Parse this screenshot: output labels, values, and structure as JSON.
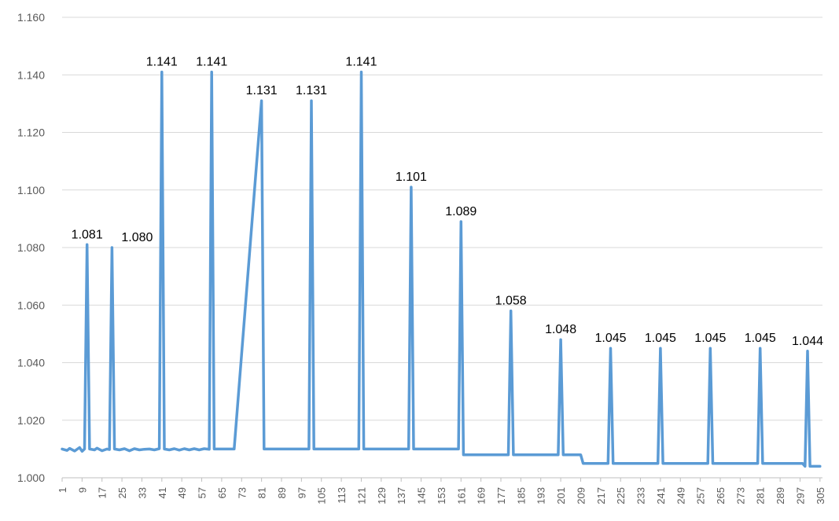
{
  "chart_data": {
    "type": "line",
    "title": "",
    "xlabel": "",
    "ylabel": "",
    "ylim": [
      1.0,
      1.16
    ],
    "xlim": [
      1,
      306
    ],
    "yticks": [
      "1.000",
      "1.020",
      "1.040",
      "1.060",
      "1.080",
      "1.100",
      "1.120",
      "1.140",
      "1.160"
    ],
    "xticks": [
      "1",
      "9",
      "17",
      "25",
      "33",
      "41",
      "49",
      "57",
      "65",
      "73",
      "81",
      "89",
      "97",
      "105",
      "113",
      "121",
      "129",
      "137",
      "145",
      "153",
      "161",
      "169",
      "177",
      "185",
      "193",
      "201",
      "209",
      "217",
      "225",
      "233",
      "241",
      "249",
      "257",
      "265",
      "273",
      "281",
      "289",
      "297",
      "305"
    ],
    "grid": true,
    "legend": "none",
    "color": "#5b9bd5",
    "series": [
      {
        "points": [
          [
            1,
            1.01
          ],
          [
            3,
            1.0095
          ],
          [
            4,
            1.0102
          ],
          [
            6,
            1.0093
          ],
          [
            8,
            1.0105
          ],
          [
            9,
            1.0092
          ],
          [
            10,
            1.01
          ],
          [
            11,
            1.081
          ],
          [
            12,
            1.01
          ],
          [
            14,
            1.0097
          ],
          [
            15,
            1.0103
          ],
          [
            17,
            1.0094
          ],
          [
            19,
            1.01
          ],
          [
            20,
            1.0098
          ],
          [
            21,
            1.08
          ],
          [
            22,
            1.01
          ],
          [
            24,
            1.0097
          ],
          [
            26,
            1.0101
          ],
          [
            28,
            1.0094
          ],
          [
            30,
            1.0101
          ],
          [
            32,
            1.0097
          ],
          [
            34,
            1.0099
          ],
          [
            36,
            1.01
          ],
          [
            38,
            1.0097
          ],
          [
            40,
            1.0101
          ],
          [
            41,
            1.141
          ],
          [
            42,
            1.01
          ],
          [
            44,
            1.0097
          ],
          [
            46,
            1.0101
          ],
          [
            48,
            1.0096
          ],
          [
            50,
            1.0101
          ],
          [
            52,
            1.0097
          ],
          [
            54,
            1.0101
          ],
          [
            56,
            1.0097
          ],
          [
            58,
            1.0101
          ],
          [
            60,
            1.0099
          ],
          [
            61,
            1.141
          ],
          [
            62,
            1.01
          ],
          [
            70,
            1.01
          ],
          [
            81,
            1.131
          ],
          [
            82,
            1.01
          ],
          [
            100,
            1.01
          ],
          [
            101,
            1.131
          ],
          [
            102,
            1.01
          ],
          [
            120,
            1.01
          ],
          [
            121,
            1.141
          ],
          [
            122,
            1.01
          ],
          [
            140,
            1.01
          ],
          [
            141,
            1.101
          ],
          [
            142,
            1.01
          ],
          [
            160,
            1.01
          ],
          [
            161,
            1.089
          ],
          [
            162,
            1.008
          ],
          [
            180,
            1.008
          ],
          [
            181,
            1.058
          ],
          [
            182,
            1.008
          ],
          [
            200,
            1.008
          ],
          [
            201,
            1.048
          ],
          [
            202,
            1.008
          ],
          [
            209,
            1.008
          ],
          [
            210,
            1.005
          ],
          [
            220,
            1.005
          ],
          [
            221,
            1.045
          ],
          [
            222,
            1.005
          ],
          [
            240,
            1.005
          ],
          [
            241,
            1.045
          ],
          [
            242,
            1.005
          ],
          [
            260,
            1.005
          ],
          [
            261,
            1.045
          ],
          [
            262,
            1.005
          ],
          [
            280,
            1.005
          ],
          [
            281,
            1.045
          ],
          [
            282,
            1.005
          ],
          [
            298,
            1.005
          ],
          [
            299,
            1.004
          ],
          [
            300,
            1.044
          ],
          [
            301,
            1.004
          ],
          [
            305,
            1.004
          ]
        ]
      }
    ],
    "data_labels": [
      {
        "x": 11,
        "y": 1.081,
        "text": "1.081"
      },
      {
        "x": 21,
        "y": 1.08,
        "text": "1.080"
      },
      {
        "x": 41,
        "y": 1.141,
        "text": "1.141"
      },
      {
        "x": 61,
        "y": 1.141,
        "text": "1.141"
      },
      {
        "x": 81,
        "y": 1.131,
        "text": "1.131"
      },
      {
        "x": 101,
        "y": 1.131,
        "text": "1.131"
      },
      {
        "x": 121,
        "y": 1.141,
        "text": "1.141"
      },
      {
        "x": 141,
        "y": 1.101,
        "text": "1.101"
      },
      {
        "x": 161,
        "y": 1.089,
        "text": "1.089"
      },
      {
        "x": 181,
        "y": 1.058,
        "text": "1.058"
      },
      {
        "x": 201,
        "y": 1.048,
        "text": "1.048"
      },
      {
        "x": 221,
        "y": 1.045,
        "text": "1.045"
      },
      {
        "x": 241,
        "y": 1.045,
        "text": "1.045"
      },
      {
        "x": 261,
        "y": 1.045,
        "text": "1.045"
      },
      {
        "x": 281,
        "y": 1.045,
        "text": "1.045"
      },
      {
        "x": 300,
        "y": 1.044,
        "text": "1.044"
      }
    ]
  }
}
